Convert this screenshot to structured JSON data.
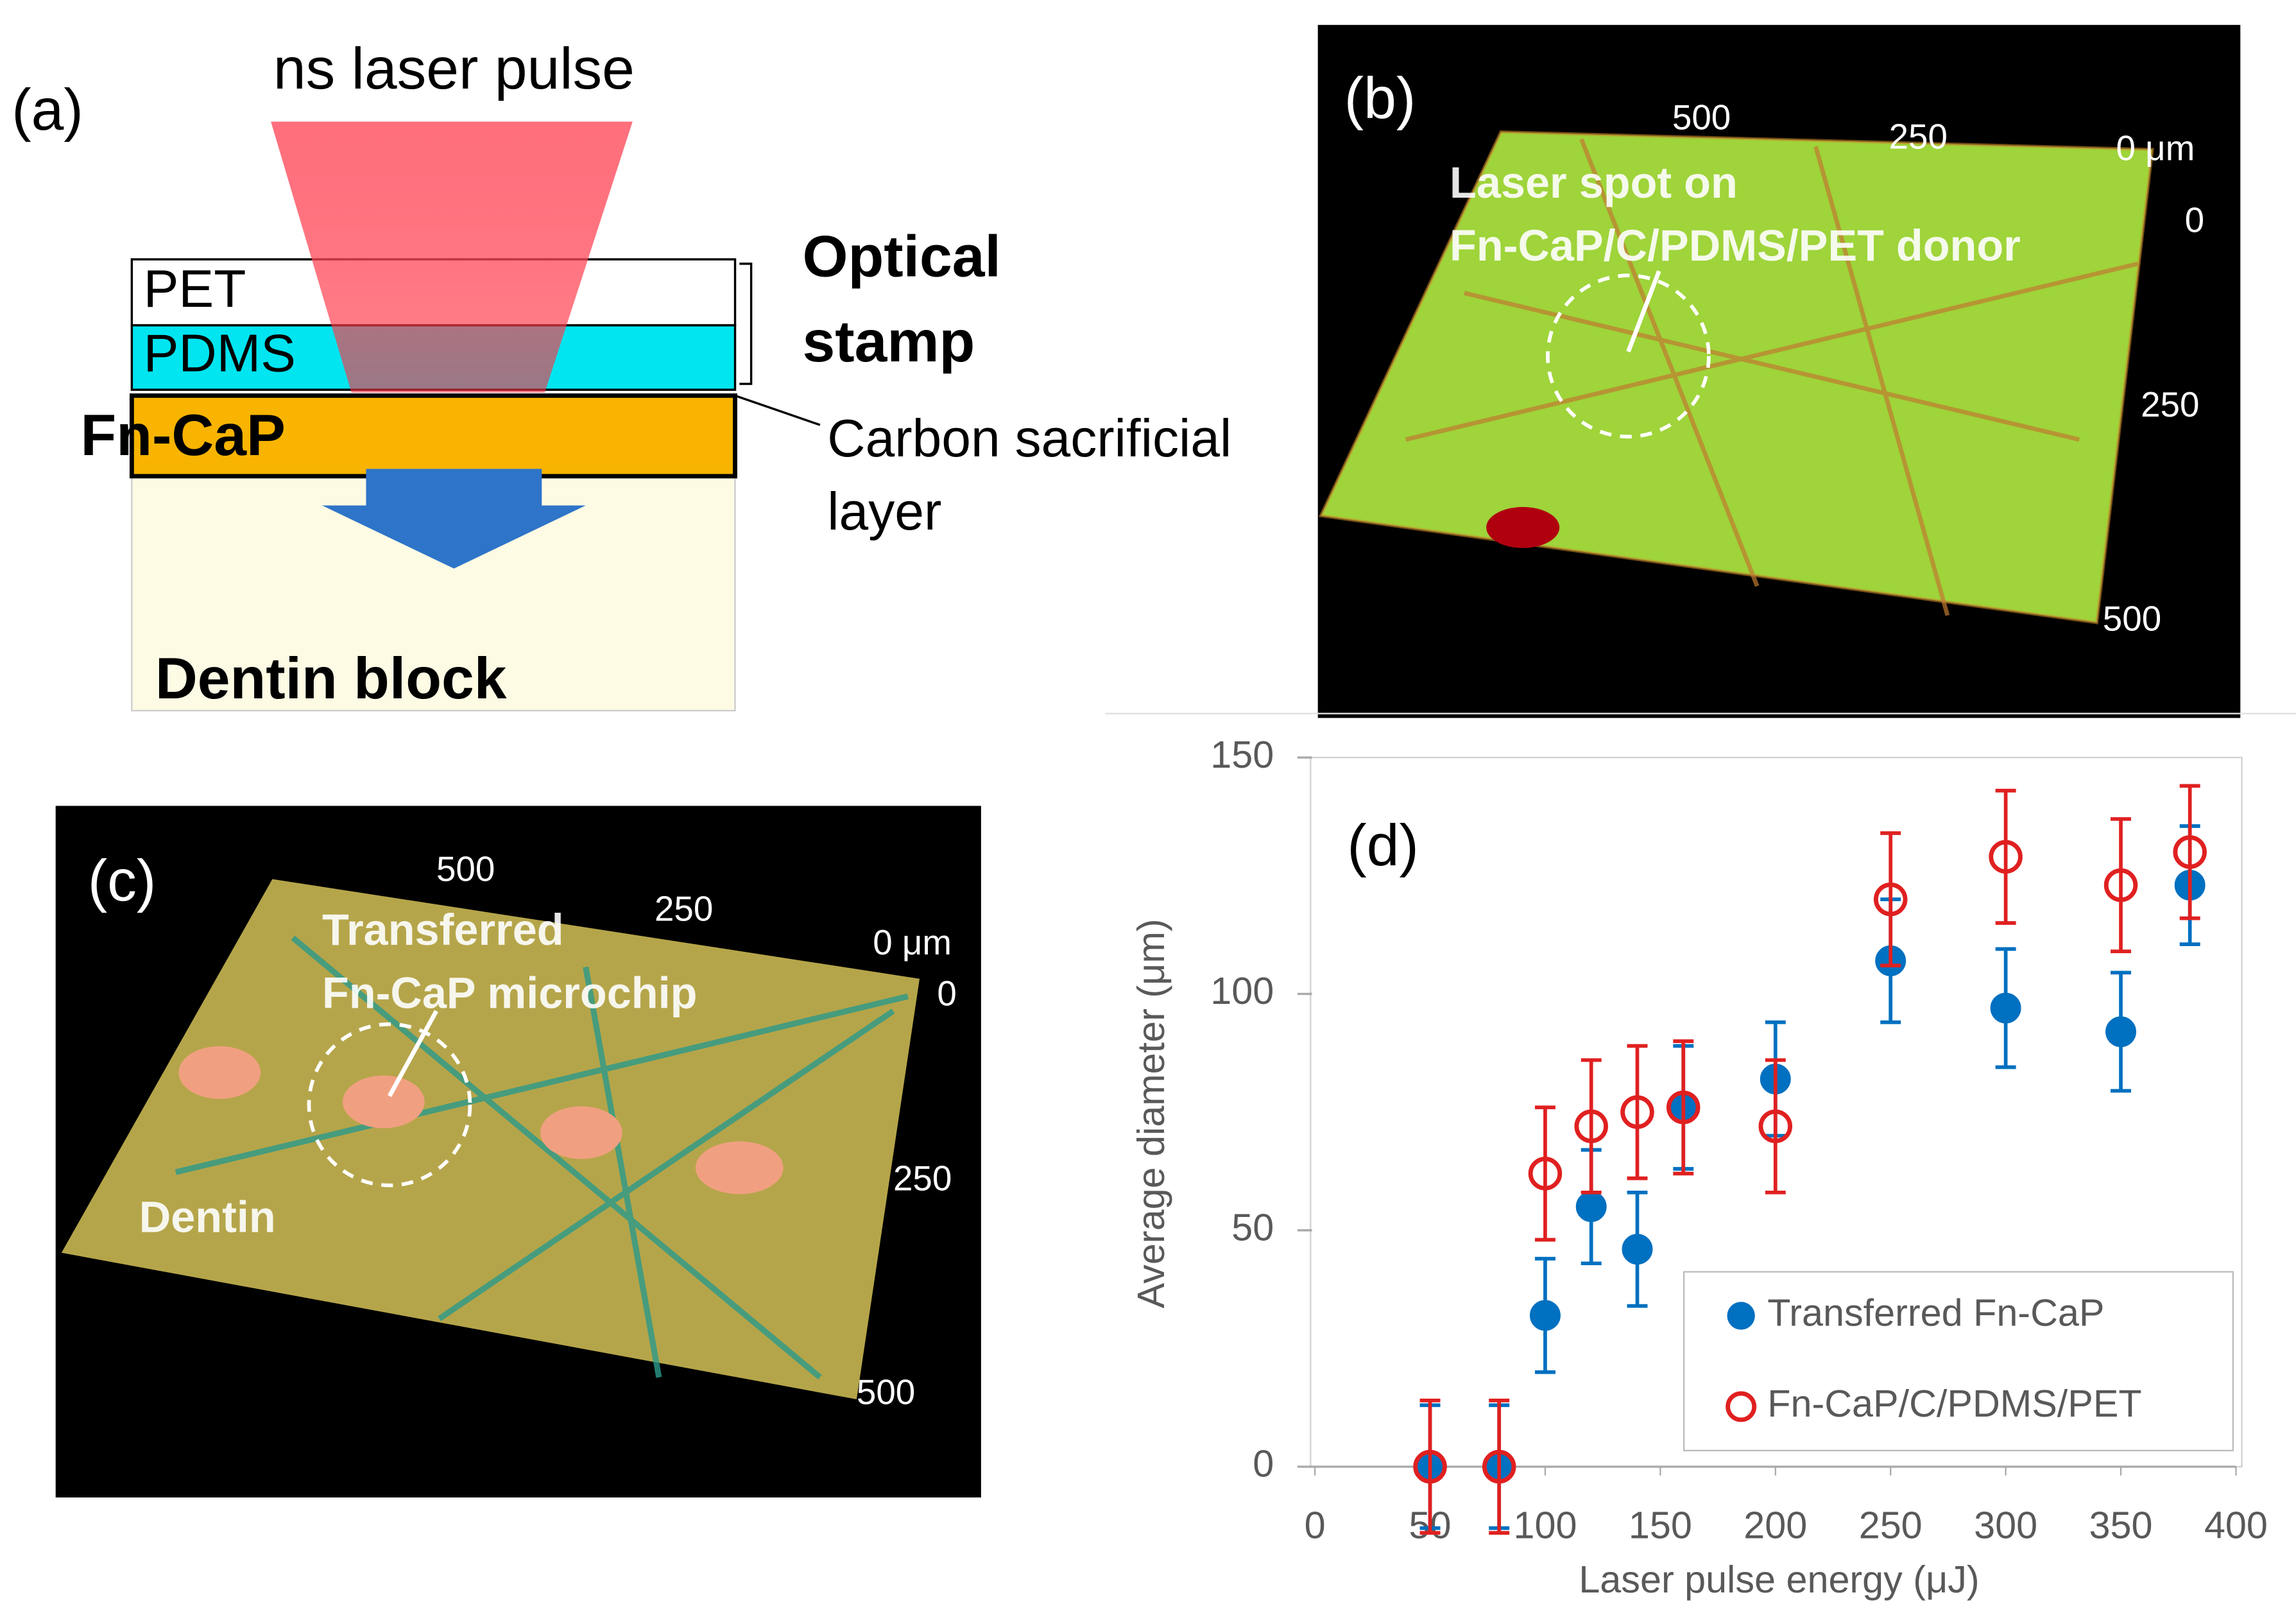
{
  "panels": {
    "a": {
      "label": "(a)",
      "pulse": "ns laser pulse",
      "pet": "PET",
      "pdms": "PDMS",
      "fncap": "Fn-CaP",
      "stamp": [
        "Optical",
        "stamp"
      ],
      "carbon": [
        "Carbon sacrificial",
        "layer"
      ],
      "dentin": "Dentin block"
    },
    "b": {
      "label": "(b)",
      "top_axis": [
        "500",
        "250",
        "0 μm"
      ],
      "side_axis": [
        "0",
        "250",
        "500"
      ],
      "annotation": [
        "Laser spot on",
        "Fn-CaP/C/PDMS/PET donor"
      ]
    },
    "c": {
      "label": "(c)",
      "top_axis": [
        "500",
        "250",
        "0 μm"
      ],
      "side_axis": [
        "0",
        "250",
        "500"
      ],
      "annotation": [
        "Transferred",
        "Fn-CaP microchip"
      ],
      "dentin": "Dentin"
    }
  },
  "chart_data": {
    "type": "scatter",
    "panel_label": "(d)",
    "x_label": "Laser pulse energy (μJ)",
    "y_label": "Average diameter (μm)",
    "xlim": [
      0,
      400
    ],
    "xticks": [
      0,
      50,
      100,
      150,
      200,
      250,
      300,
      350,
      400
    ],
    "ylim": [
      0,
      150
    ],
    "yticks": [
      0,
      50,
      100,
      150
    ],
    "series": [
      {
        "name": "Transferred Fn-CaP",
        "color": "#0070c0",
        "marker": "filled",
        "x": [
          50,
          80,
          100,
          120,
          140,
          160,
          200,
          250,
          300,
          350,
          380
        ],
        "values": [
          0,
          0,
          32,
          55,
          46,
          76,
          82,
          107,
          97,
          92,
          123
        ],
        "errors": [
          13,
          13,
          12,
          12,
          12,
          13,
          12,
          13,
          12.5,
          12.5,
          12.5
        ]
      },
      {
        "name": "Fn-CaP/C/PDMS/PET",
        "color": "#e02020",
        "marker": "open",
        "x": [
          50,
          80,
          100,
          120,
          140,
          160,
          200,
          250,
          300,
          350,
          380
        ],
        "values": [
          0,
          0,
          62,
          72,
          75,
          76,
          72,
          120,
          129,
          123,
          130
        ],
        "errors": [
          14,
          14,
          14,
          14,
          14,
          14,
          14,
          14,
          14,
          14,
          14
        ]
      }
    ]
  }
}
